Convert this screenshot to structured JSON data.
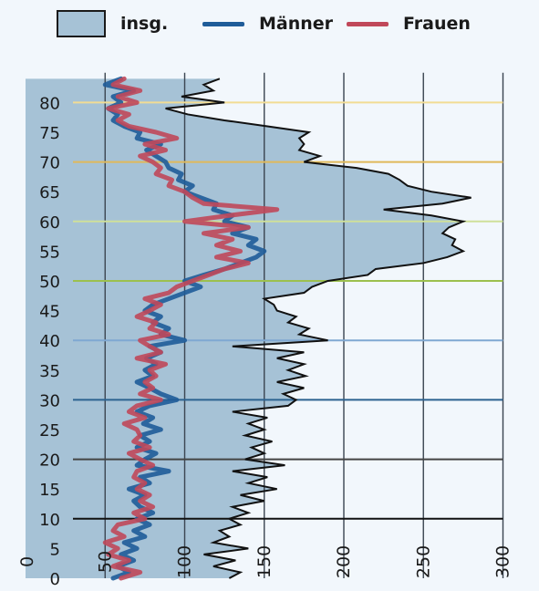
{
  "legend": {
    "total": "insg.",
    "men": "Männer",
    "women": "Frauen"
  },
  "colors": {
    "area_fill": "#a6c2d6",
    "area_stroke": "#111111",
    "men": "#1f5c99",
    "women": "#c0485a",
    "grid": "#3a4450",
    "ref_80": "#f2dc94",
    "ref_70": "#e0b95a",
    "ref_60": "#cfe09a",
    "ref_50": "#9cc04e",
    "ref_40": "#7fa8d2",
    "ref_30": "#2c6290",
    "ref_20": "#444444",
    "ref_10": "#111111"
  },
  "chart_data": {
    "type": "area",
    "orientation": "horizontal",
    "y_axis": {
      "label": "",
      "range": [
        0,
        85
      ],
      "ticks": [
        0,
        5,
        10,
        15,
        20,
        25,
        30,
        35,
        40,
        45,
        50,
        55,
        60,
        65,
        70,
        75,
        80
      ]
    },
    "x_axis": {
      "label": "",
      "range": [
        0,
        300
      ],
      "ticks": [
        0,
        50,
        100,
        150,
        200,
        250,
        300
      ]
    },
    "reference_lines": [
      80,
      70,
      60,
      50,
      40,
      30,
      20,
      10
    ],
    "series": [
      {
        "name": "insg.",
        "kind": "area",
        "ages": [
          0,
          1,
          2,
          3,
          4,
          5,
          6,
          7,
          8,
          9,
          10,
          11,
          12,
          13,
          14,
          15,
          16,
          17,
          18,
          19,
          20,
          21,
          22,
          23,
          24,
          25,
          26,
          27,
          28,
          29,
          30,
          31,
          32,
          33,
          34,
          35,
          36,
          37,
          38,
          39,
          40,
          41,
          42,
          43,
          44,
          45,
          46,
          47,
          48,
          49,
          50,
          51,
          52,
          53,
          54,
          55,
          56,
          57,
          58,
          59,
          60,
          61,
          62,
          63,
          64,
          65,
          66,
          67,
          68,
          69,
          70,
          71,
          72,
          73,
          74,
          75,
          76,
          77,
          78,
          79,
          80,
          81,
          82,
          83,
          84
        ],
        "values": [
          128,
          135,
          118,
          132,
          112,
          140,
          118,
          128,
          122,
          135,
          128,
          140,
          130,
          150,
          135,
          158,
          140,
          152,
          130,
          163,
          138,
          150,
          142,
          155,
          138,
          150,
          140,
          152,
          130,
          165,
          170,
          162,
          175,
          158,
          176,
          165,
          175,
          158,
          175,
          130,
          190,
          172,
          178,
          165,
          170,
          158,
          156,
          150,
          175,
          180,
          190,
          215,
          220,
          250,
          265,
          275,
          268,
          270,
          262,
          266,
          275,
          255,
          225,
          262,
          280,
          255,
          240,
          235,
          228,
          208,
          175,
          185,
          172,
          175,
          172,
          178,
          152,
          125,
          102,
          88,
          125,
          98,
          118,
          112,
          122
        ]
      },
      {
        "name": "Männer",
        "kind": "line",
        "ages": [
          0,
          1,
          2,
          3,
          4,
          5,
          6,
          7,
          8,
          9,
          10,
          11,
          12,
          13,
          14,
          15,
          16,
          17,
          18,
          19,
          20,
          21,
          22,
          23,
          24,
          25,
          26,
          27,
          28,
          29,
          30,
          31,
          32,
          33,
          34,
          35,
          36,
          37,
          38,
          39,
          40,
          41,
          42,
          43,
          44,
          45,
          46,
          47,
          48,
          49,
          50,
          51,
          52,
          53,
          54,
          55,
          56,
          57,
          58,
          59,
          60,
          61,
          62,
          63,
          64,
          65,
          66,
          67,
          68,
          69,
          70,
          71,
          72,
          73,
          74,
          75,
          76,
          77,
          78,
          79,
          80,
          81,
          82,
          83,
          84
        ],
        "values": [
          55,
          65,
          58,
          68,
          60,
          70,
          62,
          75,
          68,
          78,
          70,
          80,
          72,
          68,
          75,
          65,
          78,
          72,
          90,
          70,
          75,
          82,
          70,
          78,
          72,
          85,
          74,
          80,
          70,
          78,
          95,
          85,
          78,
          70,
          80,
          75,
          82,
          76,
          85,
          78,
          100,
          85,
          90,
          80,
          85,
          75,
          80,
          90,
          100,
          110,
          100,
          112,
          125,
          135,
          145,
          150,
          140,
          145,
          130,
          140,
          125,
          130,
          118,
          120,
          110,
          100,
          105,
          96,
          98,
          90,
          88,
          82,
          76,
          85,
          70,
          72,
          62,
          55,
          58,
          52,
          60,
          55,
          68,
          50,
          60
        ]
      },
      {
        "name": "Frauen",
        "kind": "line",
        "ages": [
          0,
          1,
          2,
          3,
          4,
          5,
          6,
          7,
          8,
          9,
          10,
          11,
          12,
          13,
          14,
          15,
          16,
          17,
          18,
          19,
          20,
          21,
          22,
          23,
          24,
          25,
          26,
          27,
          28,
          29,
          30,
          31,
          32,
          33,
          34,
          35,
          36,
          37,
          38,
          39,
          40,
          41,
          42,
          43,
          44,
          45,
          46,
          47,
          48,
          49,
          50,
          51,
          52,
          53,
          54,
          55,
          56,
          57,
          58,
          59,
          60,
          61,
          62,
          63,
          64,
          65,
          66,
          67,
          68,
          69,
          70,
          71,
          72,
          73,
          74,
          75,
          76,
          77,
          78,
          79,
          80,
          81,
          82,
          83,
          84
        ],
        "values": [
          60,
          72,
          55,
          65,
          52,
          58,
          50,
          62,
          55,
          58,
          75,
          68,
          80,
          72,
          78,
          70,
          75,
          68,
          70,
          80,
          72,
          65,
          78,
          68,
          72,
          70,
          62,
          75,
          65,
          70,
          85,
          72,
          80,
          75,
          82,
          78,
          88,
          70,
          85,
          78,
          72,
          90,
          78,
          82,
          70,
          78,
          85,
          75,
          90,
          95,
          105,
          115,
          125,
          140,
          120,
          135,
          120,
          130,
          112,
          140,
          100,
          128,
          158,
          112,
          105,
          100,
          90,
          92,
          82,
          85,
          80,
          72,
          88,
          75,
          95,
          82,
          65,
          58,
          65,
          52,
          70,
          58,
          72,
          55,
          62
        ]
      }
    ]
  }
}
